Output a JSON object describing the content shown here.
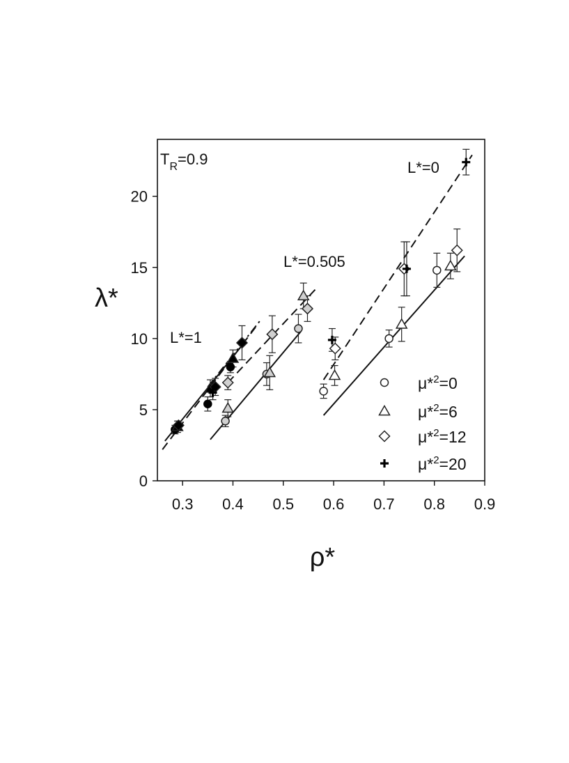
{
  "chart_data": {
    "type": "scatter",
    "xlabel": "ρ*",
    "ylabel": "λ*",
    "xlim": [
      0.25,
      0.9
    ],
    "ylim": [
      0,
      24
    ],
    "xticks": [
      "0.3",
      "0.4",
      "0.5",
      "0.6",
      "0.7",
      "0.8",
      "0.9"
    ],
    "xtick_values": [
      0.3,
      0.4,
      0.5,
      0.6,
      0.7,
      0.8,
      0.9
    ],
    "yticks": [
      "0",
      "5",
      "10",
      "15",
      "20"
    ],
    "ytick_values": [
      0,
      5,
      10,
      15,
      20
    ],
    "grid": false,
    "legend_position": "bottom-right",
    "annotations": {
      "temperature": {
        "main": "T",
        "sub": "R",
        "value": "=0.9"
      },
      "L0": "L*=0",
      "L0505": "L*=0.505",
      "L1": "L*=1"
    },
    "legend": [
      {
        "label": "μ*",
        "sup": "2",
        "value": "=0",
        "marker": "circle"
      },
      {
        "label": "μ*",
        "sup": "2",
        "value": "=6",
        "marker": "triangle"
      },
      {
        "label": "μ*",
        "sup": "2",
        "value": "=12",
        "marker": "diamond"
      },
      {
        "label": "μ*",
        "sup": "2",
        "value": "=20",
        "marker": "plus"
      }
    ],
    "groups": [
      {
        "L": 0,
        "fill": "#ffffff",
        "points": [
          {
            "mu2": 0,
            "x": 0.58,
            "y": 6.3,
            "err": 0.5
          },
          {
            "mu2": 0,
            "x": 0.71,
            "y": 10.0,
            "err": 0.6
          },
          {
            "mu2": 0,
            "x": 0.805,
            "y": 14.8,
            "err": 1.2
          },
          {
            "mu2": 6,
            "x": 0.602,
            "y": 7.4,
            "err": 0.7
          },
          {
            "mu2": 6,
            "x": 0.735,
            "y": 11.0,
            "err": 1.2
          },
          {
            "mu2": 6,
            "x": 0.832,
            "y": 15.1,
            "err": 0.9
          },
          {
            "mu2": 12,
            "x": 0.603,
            "y": 9.3,
            "err": 0.8
          },
          {
            "mu2": 12,
            "x": 0.74,
            "y": 14.9,
            "err": 1.9
          },
          {
            "mu2": 12,
            "x": 0.845,
            "y": 16.2,
            "err": 1.5
          },
          {
            "mu2": 20,
            "x": 0.597,
            "y": 9.9,
            "err": 0.8
          },
          {
            "mu2": 20,
            "x": 0.745,
            "y": 14.9,
            "err": 1.9
          },
          {
            "mu2": 20,
            "x": 0.863,
            "y": 22.4,
            "err": 0.9
          }
        ]
      },
      {
        "L": 0.505,
        "fill": "#d0d0d0",
        "points": [
          {
            "mu2": 0,
            "x": 0.385,
            "y": 4.2,
            "err": 0.4
          },
          {
            "mu2": 0,
            "x": 0.467,
            "y": 7.5,
            "err": 0.8
          },
          {
            "mu2": 0,
            "x": 0.53,
            "y": 10.7,
            "err": 1.0
          },
          {
            "mu2": 6,
            "x": 0.39,
            "y": 5.1,
            "err": 0.6
          },
          {
            "mu2": 6,
            "x": 0.473,
            "y": 7.6,
            "err": 1.2
          },
          {
            "mu2": 6,
            "x": 0.54,
            "y": 13.0,
            "err": 0.9
          },
          {
            "mu2": 12,
            "x": 0.39,
            "y": 6.9,
            "err": 0.5
          },
          {
            "mu2": 12,
            "x": 0.478,
            "y": 10.3,
            "err": 1.3
          },
          {
            "mu2": 12,
            "x": 0.548,
            "y": 12.1,
            "err": 0.9
          }
        ]
      },
      {
        "L": 1,
        "fill": "#000000",
        "points": [
          {
            "mu2": 0,
            "x": 0.285,
            "y": 3.6,
            "err": 0.3
          },
          {
            "mu2": 0,
            "x": 0.35,
            "y": 5.4,
            "err": 0.5
          },
          {
            "mu2": 0,
            "x": 0.395,
            "y": 8.0,
            "err": 0.4
          },
          {
            "mu2": 6,
            "x": 0.29,
            "y": 3.8,
            "err": 0.4
          },
          {
            "mu2": 6,
            "x": 0.355,
            "y": 6.5,
            "err": 0.6
          },
          {
            "mu2": 6,
            "x": 0.4,
            "y": 8.6,
            "err": 0.6
          },
          {
            "mu2": 12,
            "x": 0.292,
            "y": 3.9,
            "err": 0.3
          },
          {
            "mu2": 12,
            "x": 0.365,
            "y": 6.6,
            "err": 0.6
          },
          {
            "mu2": 12,
            "x": 0.418,
            "y": 9.7,
            "err": 1.2
          },
          {
            "mu2": 20,
            "x": 0.36,
            "y": 6.2,
            "err": 0.5
          }
        ]
      }
    ],
    "fit_lines": [
      {
        "L": 0,
        "mu2": 0,
        "style": "solid",
        "x": [
          0.58,
          0.86
        ],
        "y": [
          4.6,
          15.8
        ]
      },
      {
        "L": 0,
        "mu2": 20,
        "style": "dashed",
        "x": [
          0.58,
          0.875
        ],
        "y": [
          7.1,
          22.9
        ]
      },
      {
        "L": 0.505,
        "mu2": 0,
        "style": "solid",
        "x": [
          0.355,
          0.535
        ],
        "y": [
          2.9,
          10.5
        ]
      },
      {
        "L": 0.505,
        "mu2": 12,
        "style": "dashed",
        "x": [
          0.39,
          0.565
        ],
        "y": [
          6.9,
          13.5
        ]
      },
      {
        "L": 1,
        "mu2": 0,
        "style": "solid",
        "x": [
          0.265,
          0.42
        ],
        "y": [
          2.8,
          9.6
        ]
      },
      {
        "L": 1,
        "mu2": 12,
        "style": "dashed",
        "x": [
          0.26,
          0.445
        ],
        "y": [
          2.2,
          10.8
        ]
      },
      {
        "L": 1,
        "mu2": 20,
        "style": "dashdot",
        "x": [
          0.35,
          0.455
        ],
        "y": [
          6.6,
          11.3
        ]
      }
    ]
  }
}
